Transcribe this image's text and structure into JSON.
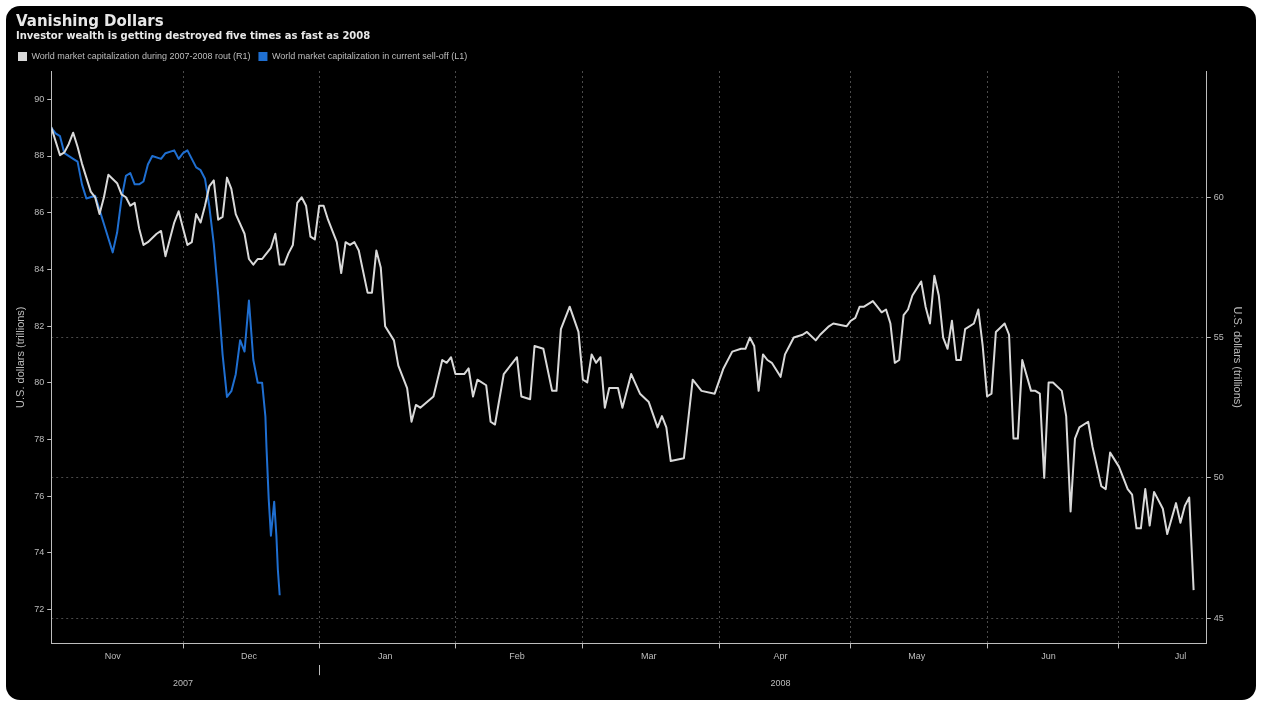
{
  "chart_data": {
    "type": "line",
    "title": "Vanishing Dollars",
    "subtitle": "Investor wealth is getting destroyed five times as fast as 2008",
    "ylabel": "U.S. dollars (trillions)",
    "y2label": "U.S. dollars (trillions)",
    "xlim": [
      "2007-11-01",
      "2008-07-21"
    ],
    "xticks": [
      {
        "value": "2007-11-15",
        "label": "Nov"
      },
      {
        "value": "2007-12-01",
        "label": null
      },
      {
        "value": "2007-12-16",
        "label": "Dec"
      },
      {
        "value": "2008-01-01",
        "label": null
      },
      {
        "value": "2008-01-16",
        "label": "Jan"
      },
      {
        "value": "2008-02-01",
        "label": null
      },
      {
        "value": "2008-02-15",
        "label": "Feb"
      },
      {
        "value": "2008-03-01",
        "label": null
      },
      {
        "value": "2008-03-16",
        "label": "Mar"
      },
      {
        "value": "2008-04-01",
        "label": null
      },
      {
        "value": "2008-04-15",
        "label": "Apr"
      },
      {
        "value": "2008-05-01",
        "label": null
      },
      {
        "value": "2008-05-16",
        "label": "May"
      },
      {
        "value": "2008-06-01",
        "label": null
      },
      {
        "value": "2008-06-15",
        "label": "Jun"
      },
      {
        "value": "2008-07-01",
        "label": null
      },
      {
        "value": "2008-07-15",
        "label": "Jul"
      }
    ],
    "x2lim": [
      "2007-11-01",
      "2008-07-21"
    ],
    "x2ticks": [
      {
        "value": "2007-12-01",
        "label": "2007"
      },
      {
        "value": "2008-01-01",
        "label": null
      },
      {
        "value": "2008-04-15",
        "label": "2008"
      }
    ],
    "ylim": [
      70.8,
      91
    ],
    "yticks": [
      72,
      74,
      76,
      78,
      80,
      82,
      84,
      86,
      88,
      90
    ],
    "y2lim": [
      44.1,
      64.5
    ],
    "y2ticks": [
      45,
      50,
      55,
      60
    ],
    "grid": true,
    "legend": "top left",
    "series": [
      {
        "name": "World market capitalization during 2007-2008 rout (R1)",
        "color": "#d9d9d9",
        "axis": "y2",
        "x": [
          "2007-11-01",
          "2007-11-03",
          "2007-11-04",
          "2007-11-05",
          "2007-11-06",
          "2007-11-07",
          "2007-11-08",
          "2007-11-09",
          "2007-11-10",
          "2007-11-11",
          "2007-11-12",
          "2007-11-13",
          "2007-11-14",
          "2007-11-16",
          "2007-11-17",
          "2007-11-18",
          "2007-11-19",
          "2007-11-20",
          "2007-11-21",
          "2007-11-22",
          "2007-11-23",
          "2007-11-25",
          "2007-11-26",
          "2007-11-27",
          "2007-11-28",
          "2007-11-29",
          "2007-11-30",
          "2007-12-01",
          "2007-12-02",
          "2007-12-03",
          "2007-12-04",
          "2007-12-05",
          "2007-12-06",
          "2007-12-07",
          "2007-12-08",
          "2007-12-09",
          "2007-12-10",
          "2007-12-11",
          "2007-12-12",
          "2007-12-13",
          "2007-12-15",
          "2007-12-16",
          "2007-12-17",
          "2007-12-18",
          "2007-12-19",
          "2007-12-21",
          "2007-12-22",
          "2007-12-23",
          "2007-12-24",
          "2007-12-25",
          "2007-12-26",
          "2007-12-27",
          "2007-12-28",
          "2007-12-29",
          "2007-12-30",
          "2007-12-31",
          "2008-01-01",
          "2008-01-02",
          "2008-01-03",
          "2008-01-05",
          "2008-01-06",
          "2008-01-07",
          "2008-01-08",
          "2008-01-09",
          "2008-01-10",
          "2008-01-12",
          "2008-01-13",
          "2008-01-14",
          "2008-01-15",
          "2008-01-16",
          "2008-01-18",
          "2008-01-19",
          "2008-01-21",
          "2008-01-22",
          "2008-01-23",
          "2008-01-24",
          "2008-01-27",
          "2008-01-29",
          "2008-01-30",
          "2008-01-31",
          "2008-02-01",
          "2008-02-03",
          "2008-02-04",
          "2008-02-05",
          "2008-02-06",
          "2008-02-08",
          "2008-02-09",
          "2008-02-10",
          "2008-02-12",
          "2008-02-15",
          "2008-02-16",
          "2008-02-18",
          "2008-02-19",
          "2008-02-21",
          "2008-02-23",
          "2008-02-24",
          "2008-02-25",
          "2008-02-27",
          "2008-02-29",
          "2008-03-01",
          "2008-03-02",
          "2008-03-03",
          "2008-03-04",
          "2008-03-05",
          "2008-03-06",
          "2008-03-07",
          "2008-03-09",
          "2008-03-10",
          "2008-03-12",
          "2008-03-14",
          "2008-03-16",
          "2008-03-18",
          "2008-03-19",
          "2008-03-20",
          "2008-03-21",
          "2008-03-24",
          "2008-03-26",
          "2008-03-28",
          "2008-03-31",
          "2008-04-02",
          "2008-04-04",
          "2008-04-06",
          "2008-04-07",
          "2008-04-08",
          "2008-04-09",
          "2008-04-10",
          "2008-04-11",
          "2008-04-12",
          "2008-04-13",
          "2008-04-15",
          "2008-04-16",
          "2008-04-17",
          "2008-04-18",
          "2008-04-20",
          "2008-04-21",
          "2008-04-23",
          "2008-04-24",
          "2008-04-26",
          "2008-04-27",
          "2008-04-30",
          "2008-05-01",
          "2008-05-02",
          "2008-05-03",
          "2008-05-04",
          "2008-05-05",
          "2008-05-06",
          "2008-05-07",
          "2008-05-08",
          "2008-05-09",
          "2008-05-10",
          "2008-05-11",
          "2008-05-12",
          "2008-05-13",
          "2008-05-14",
          "2008-05-15",
          "2008-05-17",
          "2008-05-18",
          "2008-05-19",
          "2008-05-20",
          "2008-05-21",
          "2008-05-22",
          "2008-05-23",
          "2008-05-24",
          "2008-05-25",
          "2008-05-26",
          "2008-05-27",
          "2008-05-29",
          "2008-05-30",
          "2008-05-31",
          "2008-06-01",
          "2008-06-02",
          "2008-06-03",
          "2008-06-05",
          "2008-06-06",
          "2008-06-07",
          "2008-06-08",
          "2008-06-09",
          "2008-06-11",
          "2008-06-12",
          "2008-06-13",
          "2008-06-14",
          "2008-06-15",
          "2008-06-16",
          "2008-06-18",
          "2008-06-19",
          "2008-06-20",
          "2008-06-21",
          "2008-06-22",
          "2008-06-24",
          "2008-06-25",
          "2008-06-27",
          "2008-06-28",
          "2008-06-29",
          "2008-07-01",
          "2008-07-03",
          "2008-07-04",
          "2008-07-05",
          "2008-07-06",
          "2008-07-07",
          "2008-07-08",
          "2008-07-09",
          "2008-07-11",
          "2008-07-12",
          "2008-07-14",
          "2008-07-15",
          "2008-07-16",
          "2008-07-17",
          "2008-07-18"
        ],
        "values": [
          62.5,
          61.5,
          61.6,
          61.9,
          62.3,
          61.8,
          61.2,
          60.7,
          60.2,
          60.0,
          59.4,
          60.0,
          60.8,
          60.5,
          60.1,
          60.0,
          59.7,
          59.8,
          58.9,
          58.3,
          58.4,
          58.7,
          58.8,
          57.9,
          58.5,
          59.1,
          59.5,
          58.9,
          58.3,
          58.4,
          59.4,
          59.1,
          59.7,
          60.4,
          60.6,
          59.2,
          59.3,
          60.7,
          60.3,
          59.4,
          58.7,
          57.8,
          57.6,
          57.8,
          57.8,
          58.2,
          58.7,
          57.6,
          57.6,
          58.0,
          58.3,
          59.8,
          60.0,
          59.7,
          58.6,
          58.5,
          59.7,
          59.7,
          59.2,
          58.4,
          57.3,
          58.4,
          58.3,
          58.4,
          58.1,
          56.6,
          56.6,
          58.1,
          57.5,
          55.4,
          54.9,
          54.0,
          53.2,
          52.0,
          52.6,
          52.5,
          52.9,
          54.2,
          54.1,
          54.3,
          53.7,
          53.7,
          53.9,
          52.9,
          53.5,
          53.3,
          52.0,
          51.9,
          53.7,
          54.3,
          52.9,
          52.8,
          54.7,
          54.6,
          53.1,
          53.1,
          55.3,
          56.1,
          55.2,
          53.5,
          53.4,
          54.4,
          54.1,
          54.3,
          52.5,
          53.2,
          53.2,
          52.5,
          53.7,
          53.0,
          52.7,
          51.8,
          52.2,
          51.8,
          50.6,
          50.7,
          53.5,
          53.1,
          53.0,
          53.9,
          54.5,
          54.6,
          54.6,
          55.0,
          54.7,
          53.1,
          54.4,
          54.2,
          54.1,
          53.6,
          54.4,
          54.7,
          55.0,
          55.1,
          55.2,
          54.9,
          55.1,
          55.4,
          55.5,
          55.4,
          55.6,
          55.7,
          56.1,
          56.1,
          56.2,
          56.3,
          56.1,
          55.9,
          56.0,
          55.5,
          54.1,
          54.2,
          55.8,
          56.0,
          56.5,
          57.0,
          56.1,
          55.5,
          57.2,
          56.5,
          55.0,
          54.6,
          55.6,
          54.2,
          54.2,
          55.3,
          55.5,
          56.0,
          54.7,
          52.9,
          53.0,
          55.2,
          55.5,
          55.1,
          51.4,
          51.4,
          54.2,
          53.1,
          53.1,
          53.0,
          50.0,
          53.4,
          53.4,
          53.1,
          52.2,
          48.8,
          51.4,
          51.8,
          52.0,
          51.1,
          49.7,
          49.6,
          50.9,
          50.4,
          49.6,
          49.4,
          48.2,
          48.2,
          49.6,
          48.3,
          49.5,
          48.9,
          48.0,
          49.1,
          48.4,
          49.0,
          49.3,
          46.0
        ]
      },
      {
        "name": "World market capitalization in current sell-off (L1)",
        "color": "#1f6fd1",
        "axis": "y",
        "x": [
          "2007-11-01",
          "2007-11-02",
          "2007-11-03",
          "2007-11-04",
          "2007-11-06",
          "2007-11-07",
          "2007-11-08",
          "2007-11-09",
          "2007-11-11",
          "2007-11-12",
          "2007-11-13",
          "2007-11-14",
          "2007-11-15",
          "2007-11-16",
          "2007-11-17",
          "2007-11-18",
          "2007-11-19",
          "2007-11-20",
          "2007-11-21",
          "2007-11-22",
          "2007-11-23",
          "2007-11-24",
          "2007-11-26",
          "2007-11-27",
          "2007-11-29",
          "2007-11-30",
          "2007-12-01",
          "2007-12-02",
          "2007-12-03",
          "2007-12-04",
          "2007-12-05",
          "2007-12-06",
          "2007-12-07",
          "2007-12-08",
          "2007-12-09",
          "2007-12-10",
          "2007-12-11",
          "2007-12-12",
          "2007-12-13",
          "2007-12-14",
          "2007-12-15",
          "2007-12-16",
          "2007-12-17",
          "2007-12-18",
          "2007-12-19",
          "2007-12-19T18:00",
          "2007-12-20",
          "2007-12-20T12:00",
          "2007-12-21",
          "2007-12-21T18:00",
          "2007-12-22T06:00",
          "2007-12-22T14:00",
          "2007-12-23"
        ],
        "values": [
          89.0,
          88.8,
          88.7,
          88.1,
          87.9,
          87.8,
          87.0,
          86.5,
          86.6,
          86.1,
          85.6,
          85.1,
          84.6,
          85.3,
          86.5,
          87.3,
          87.4,
          87.0,
          87.0,
          87.1,
          87.7,
          88.0,
          87.9,
          88.1,
          88.2,
          87.9,
          88.1,
          88.2,
          87.9,
          87.6,
          87.5,
          87.2,
          86.2,
          84.9,
          83.1,
          81.0,
          79.5,
          79.7,
          80.3,
          81.5,
          81.1,
          82.9,
          80.8,
          80.0,
          80.0,
          78.8,
          77.7,
          75.9,
          74.6,
          75.8,
          74.6,
          73.4,
          72.5
        ]
      }
    ]
  }
}
